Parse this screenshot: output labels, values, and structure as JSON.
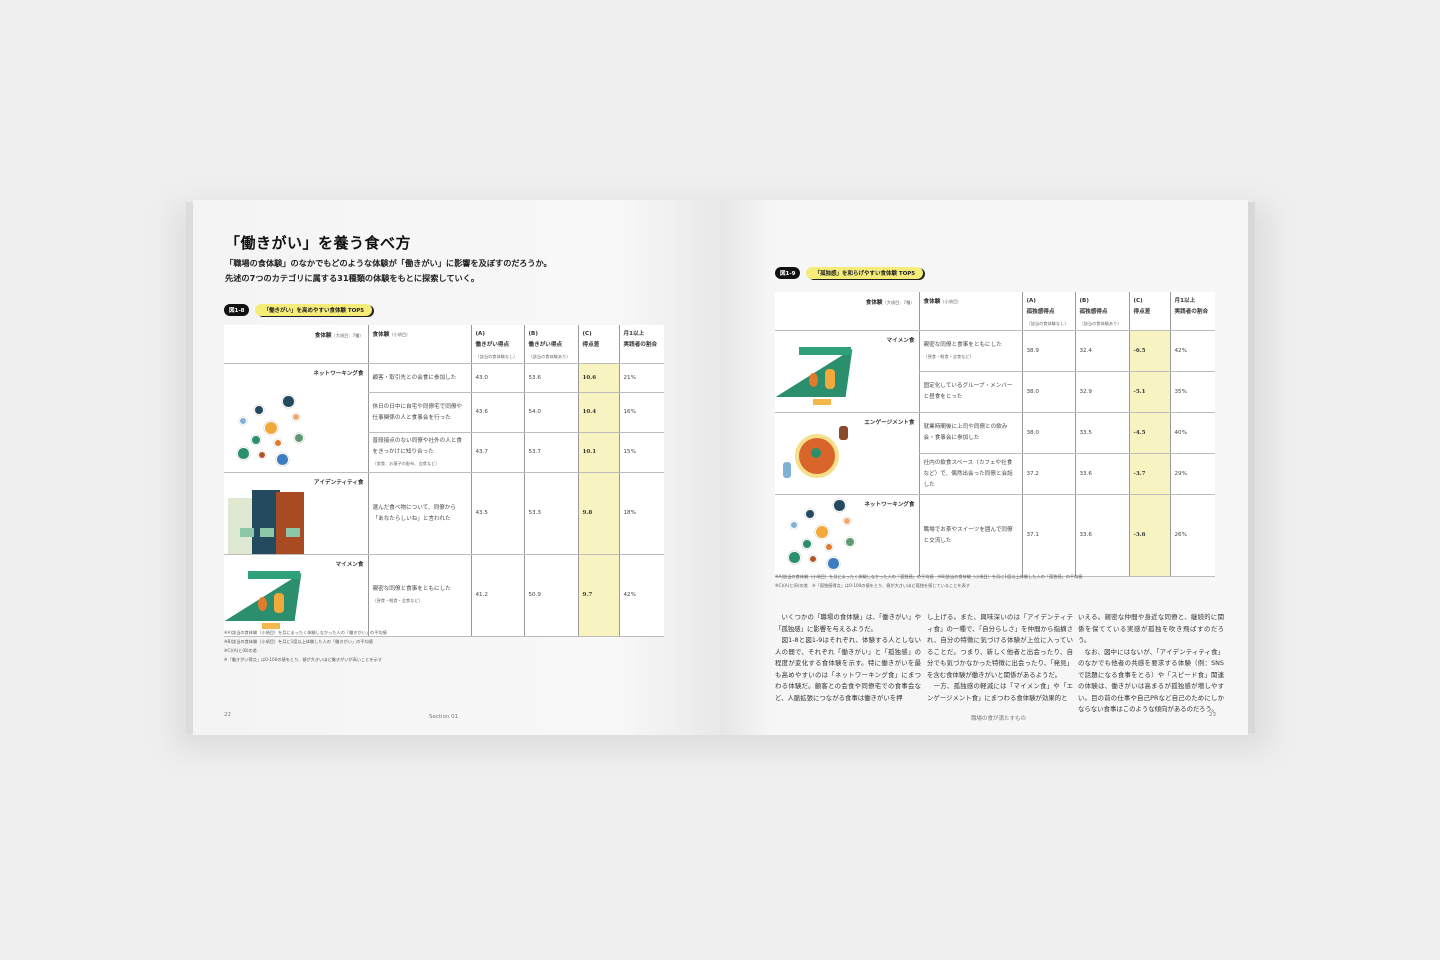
{
  "left_page": {
    "title": "「働きがい」を養う食べ方",
    "lead": [
      "「職場の食体験」のなかでもどのような体験が「働きがい」に影響を及ぼすのだろうか。",
      "先述の7つのカテゴリに属する31種類の体験をもとに探索していく。"
    ],
    "figure_number": "図1-8",
    "figure_title": "「働きがい」を高めやすい食体験 TOP5",
    "headers": {
      "category": "食体験",
      "category_note": "（大項目：7種）",
      "item": "食体験",
      "item_note": "（小項目）",
      "a": [
        "(A)",
        "働きがい得点"
      ],
      "a_note": "（該当の食体験なし）",
      "b": [
        "(B)",
        "働きがい得点"
      ],
      "b_note": "（該当の食体験あり）",
      "c": [
        "(C)",
        "得点差"
      ],
      "ratio": [
        "月1以上",
        "実践者の割合"
      ]
    },
    "groups": [
      {
        "category": "ネットワーキング食",
        "illustration": "network-people",
        "rows": [
          {
            "item": "顧客・取引先との会食に参加した",
            "note": "",
            "a": "43.0",
            "b": "53.6",
            "c": "10.6",
            "ratio": "21%"
          },
          {
            "item": "休日の日中に自宅や同僚宅で同僚や仕事関係の人と食事会を行った",
            "note": "",
            "a": "43.6",
            "b": "54.0",
            "c": "10.4",
            "ratio": "16%"
          },
          {
            "item": "普段接点のない同僚や社外の人と食をきっかけに知り合った",
            "note": "（差食、お菓子の配布、会食など）",
            "a": "43.7",
            "b": "53.7",
            "c": "10.1",
            "ratio": "15%"
          }
        ]
      },
      {
        "category": "アイデンティティ食",
        "illustration": "coworkers-badges",
        "rows": [
          {
            "item": "選んだ食べ物について、同僚から「あなたらしいね」と言われた",
            "note": "",
            "a": "43.5",
            "b": "53.3",
            "c": "9.8",
            "ratio": "18%"
          }
        ]
      },
      {
        "category": "マイメン食",
        "illustration": "tent-meal",
        "rows": [
          {
            "item": "親密な同僚と食事をともにした",
            "note": "（昼食・軽食・会食など）",
            "a": "41.2",
            "b": "50.9",
            "c": "9.7",
            "ratio": "42%"
          }
        ]
      }
    ],
    "notes": [
      "※A)該当の食体験（小項目）を月にまったく体験しなかった人の「働きがい」の平均値",
      "※B)該当の食体験（小項目）を月に1度以上体験した人の「働きがい」の平均値",
      "※C)(A)と(B)の差",
      "※「働きがい得点」は0-100の値をとり、値が大きいほど働きがいが高いことを示す"
    ],
    "page_number": "22",
    "footer": "Section 01"
  },
  "right_page": {
    "figure_number": "図1-9",
    "figure_title": "「孤独感」を和らげやすい食体験 TOP5",
    "headers": {
      "category": "食体験",
      "category_note": "（大項目：7種）",
      "item": "食体験",
      "item_note": "（小項目）",
      "a": [
        "(A)",
        "孤独感得点"
      ],
      "a_note": "（該当の食体験なし）",
      "b": [
        "(B)",
        "孤独感得点"
      ],
      "b_note": "（該当の食体験あり）",
      "c": [
        "(C)",
        "得点差"
      ],
      "ratio": [
        "月1以上",
        "実践者の割合"
      ]
    },
    "groups": [
      {
        "category": "マイメン食",
        "illustration": "tent-meal",
        "rows": [
          {
            "item": "親密な同僚と食事をともにした",
            "note": "（昼食・軽食・会食など）",
            "a": "38.9",
            "b": "32.4",
            "c": "-6.5",
            "ratio": "42%"
          },
          {
            "item": "固定化しているグループ・メンバーと昼食をとった",
            "note": "",
            "a": "38.0",
            "b": "32.9",
            "c": "-5.1",
            "ratio": "35%"
          }
        ]
      },
      {
        "category": "エンゲージメント食",
        "illustration": "pizza-people",
        "rows": [
          {
            "item": "就業時間後に上司や同僚との飲み会・食事会に参加した",
            "note": "",
            "a": "38.0",
            "b": "33.5",
            "c": "-4.5",
            "ratio": "40%"
          },
          {
            "item": "社内の飲食スペース（カフェや社食など）で、偶然出会った同僚と会話した",
            "note": "",
            "a": "37.2",
            "b": "33.6",
            "c": "-3.7",
            "ratio": "29%"
          }
        ]
      },
      {
        "category": "ネットワーキング食",
        "illustration": "network-people",
        "rows": [
          {
            "item": "職場でお茶やスイーツを囲んで同僚と交流した",
            "note": "",
            "a": "37.1",
            "b": "33.6",
            "c": "-3.6",
            "ratio": "26%"
          }
        ]
      }
    ],
    "notes": [
      "※A)該当の食体験（小項目）を月にまったく体験しなかった人の「孤独感」の平均値　※B)該当の食体験（小項目）を月に1度以上体験した人の「孤独感」の平均値",
      "※C)(A)と(B)の差　※「孤独感得点」は0-100の値をとり、値が大きいほど孤独を感じていることを表す"
    ],
    "body_columns": [
      "　いくつかの「職場の食体験」は、「働きがい」や「孤独感」に影響を与えるようだ。\n　図1-8と図1-9はそれぞれ、体験する人としない人の間で、それぞれ「働きがい」と「孤独感」の程度が変化する食体験を示す。特に働きがいを最も高めやすいのは「ネットワーキング食」にまつわる体験だ。顧客との会食や同僚宅での食事会など、人脈拡張につながる食事は働きがいを押",
      "し上げる。また、興味深いのは「アイデンティティ食」の一種で、「自分らしさ」を仲間から指摘され、自分の特徴に気づける体験が上位に入っていることだ。つまり、新しく他者と出会ったり、自分でも気づかなかった特徴に出会ったり、「発見」を含む食体験が働きがいと関係があるようだ。\n　一方、孤独感の軽減には「マイメン食」や「エンゲージメント食」にまつわる食体験が効果的と",
      "いえる。親密な仲間や身近な同僚と、継続的に関係を保てている実感が孤独を吹き飛ばすのだろう。\n　なお、図中にはないが、「アイデンティティ食」のなかでも他者の共感を要求する体験（例：SNSで話題になる食事をとる）や「スピード食」関連の体験は、働きがいは高まるが孤独感が増しやすい。目の前の仕事や自己PRなど自己のためにしかならない食事はこのような傾向があるのだろう。"
    ],
    "footer": "職場の食が満たすもの",
    "page_number": "23"
  },
  "colors": {
    "highlight": "#f8f4c2",
    "tag_yellow": "#f5ec7a",
    "illustration_green": "#2b8f6e",
    "illustration_orange": "#e07a2c",
    "illustration_navy": "#244a60"
  }
}
